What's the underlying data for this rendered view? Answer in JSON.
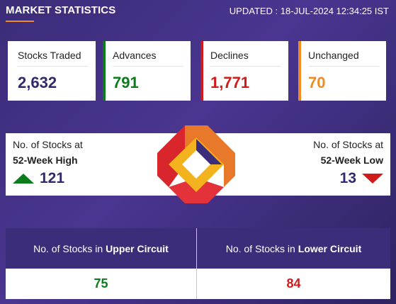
{
  "header": {
    "title": "MARKET STATISTICS",
    "updated": "UPDATED : 18-JUL-2024 12:34:25 IST"
  },
  "stats": [
    {
      "label": "Stocks Traded",
      "value": "2,632",
      "color": "#2e2a6b",
      "accent": "#ffffff"
    },
    {
      "label": "Advances",
      "value": "791",
      "color": "#0a7d1a",
      "accent": "#0a7d1a"
    },
    {
      "label": "Declines",
      "value": "1,771",
      "color": "#d11a1a",
      "accent": "#d11a1a"
    },
    {
      "label": "Unchanged",
      "value": "70",
      "color": "#f08a24",
      "accent": "#f08a24"
    }
  ],
  "week": {
    "high_line1": "No. of Stocks at",
    "high_line2": "52-Week High",
    "high_value": "121",
    "low_line1": "No. of Stocks at",
    "low_line2": "52-Week Low",
    "low_value": "13"
  },
  "circuit": {
    "upper_prefix": "No. of Stocks in",
    "upper_bold": "Upper Circuit",
    "upper_value": "75",
    "lower_prefix": "No. of Stocks in",
    "lower_bold": "Lower Circuit",
    "lower_value": "84"
  },
  "colors": {
    "background": "#4a3590",
    "header_band": "#3b2d79",
    "green": "#0a7d1a",
    "red": "#d11a1a",
    "orange": "#f08a24",
    "navy_value": "#2e2a6b"
  }
}
